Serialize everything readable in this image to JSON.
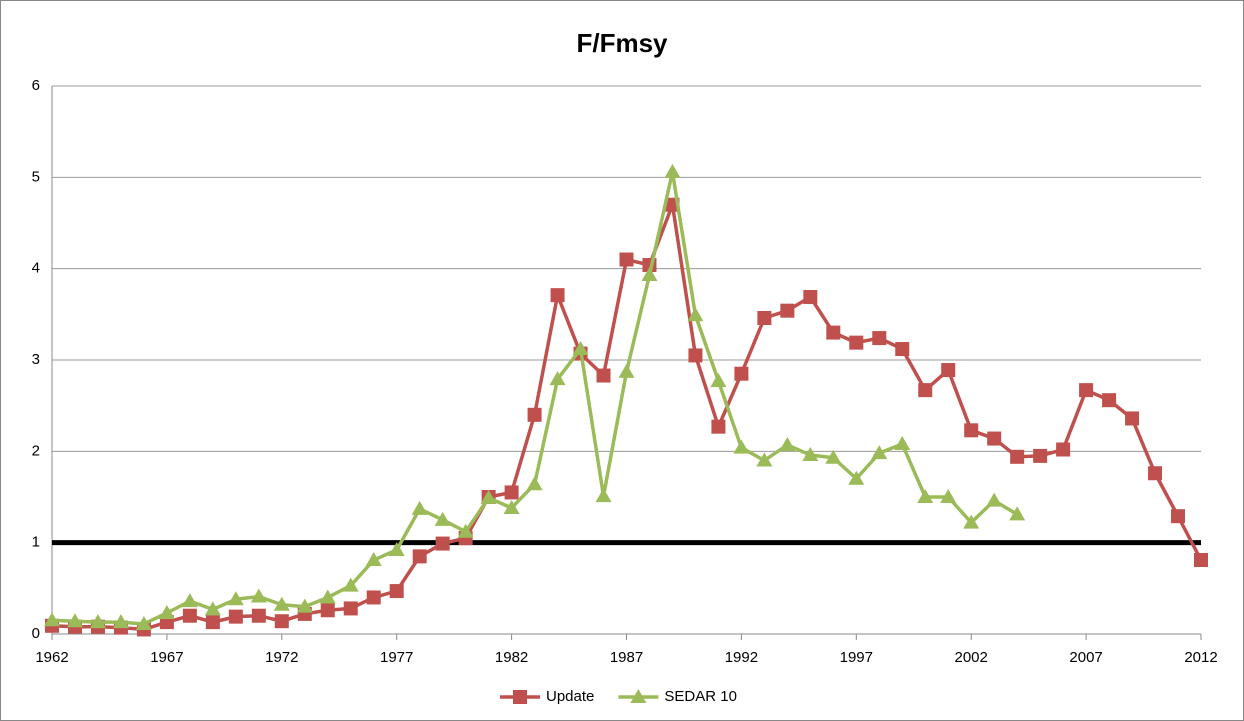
{
  "chart_data": {
    "type": "line",
    "title": "F/Fmsy",
    "x": [
      1962,
      1963,
      1964,
      1965,
      1966,
      1967,
      1968,
      1969,
      1970,
      1971,
      1972,
      1973,
      1974,
      1975,
      1976,
      1977,
      1978,
      1979,
      1980,
      1981,
      1982,
      1983,
      1984,
      1985,
      1986,
      1987,
      1988,
      1989,
      1990,
      1991,
      1992,
      1993,
      1994,
      1995,
      1996,
      1997,
      1998,
      1999,
      2000,
      2001,
      2002,
      2003,
      2004,
      2005,
      2006,
      2007,
      2008,
      2009,
      2010,
      2011,
      2012
    ],
    "series": [
      {
        "name": "Update",
        "color": "#c0504d",
        "marker": "square",
        "values": [
          0.09,
          0.08,
          0.08,
          0.07,
          0.05,
          0.13,
          0.2,
          0.13,
          0.19,
          0.2,
          0.14,
          0.22,
          0.26,
          0.28,
          0.4,
          0.47,
          0.85,
          0.99,
          1.05,
          1.5,
          1.55,
          2.4,
          3.71,
          3.07,
          2.83,
          4.1,
          4.04,
          4.7,
          3.05,
          2.27,
          2.85,
          3.46,
          3.54,
          3.69,
          3.3,
          3.19,
          3.24,
          3.12,
          2.67,
          2.89,
          2.23,
          2.14,
          1.94,
          1.95,
          2.02,
          2.67,
          2.56,
          2.36,
          1.76,
          1.29,
          0.81
        ]
      },
      {
        "name": "SEDAR 10",
        "color": "#9bbb59",
        "marker": "triangle",
        "values": [
          0.15,
          0.14,
          0.13,
          0.13,
          0.11,
          0.23,
          0.36,
          0.27,
          0.38,
          0.41,
          0.32,
          0.3,
          0.4,
          0.53,
          0.81,
          0.92,
          1.37,
          1.25,
          1.12,
          1.49,
          1.38,
          1.64,
          2.79,
          3.12,
          1.51,
          2.87,
          3.93,
          5.06,
          3.49,
          2.77,
          2.04,
          1.9,
          2.07,
          1.96,
          1.93,
          1.7,
          1.98,
          2.08,
          1.5,
          1.5,
          1.22,
          1.46,
          1.31,
          null,
          null,
          null,
          null,
          null,
          null,
          null,
          null
        ]
      }
    ],
    "xlim": [
      1962,
      2012
    ],
    "xticks": [
      1962,
      1967,
      1972,
      1977,
      1982,
      1987,
      1992,
      1997,
      2002,
      2007,
      2012
    ],
    "ylim": [
      0,
      6
    ],
    "yticks": [
      0,
      1,
      2,
      3,
      4,
      5,
      6
    ],
    "grid": true,
    "reference_line": {
      "value": 1,
      "color": "#000000"
    },
    "legend": "bottom"
  }
}
